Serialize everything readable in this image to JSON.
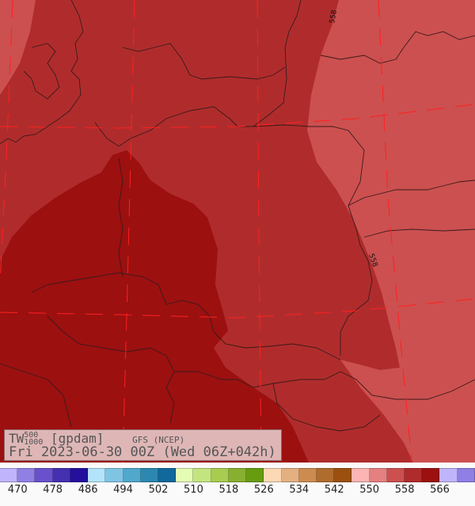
{
  "title": {
    "variable": "TW",
    "sup": "500",
    "sub": "1000",
    "unit": "[gpdam]",
    "model": "GFS (NCEP)",
    "valid": "Fri 2023-06-30 00Z (Wed 06Z+042h)"
  },
  "contour_labels": [
    "558",
    "558"
  ],
  "colors": {
    "region_light": "#cc5050",
    "region_mid": "#b02c2c",
    "region_dark": "#9c1010",
    "grid": "#ff2020",
    "coast": "#3a1a1a",
    "title_box": "#deb6b6"
  },
  "colorbar": {
    "colors": [
      "#c0b4fc",
      "#9080e4",
      "#6a50cc",
      "#4430b0",
      "#24109c",
      "#b4e4fc",
      "#80c4e4",
      "#50a8cc",
      "#2c88b0",
      "#10689c",
      "#e4fcb4",
      "#c4e480",
      "#a8cc50",
      "#88b030",
      "#689c10",
      "#fcd8b4",
      "#e4b080",
      "#cc8c50",
      "#b06c2c",
      "#9c5010",
      "#fcb4b4",
      "#e48080",
      "#cc5050",
      "#b02c2c",
      "#9c1010",
      "#c0b4fc",
      "#9080e4"
    ],
    "labels": [
      "470",
      "478",
      "486",
      "494",
      "502",
      "510",
      "518",
      "526",
      "534",
      "542",
      "550",
      "558",
      "566"
    ]
  }
}
